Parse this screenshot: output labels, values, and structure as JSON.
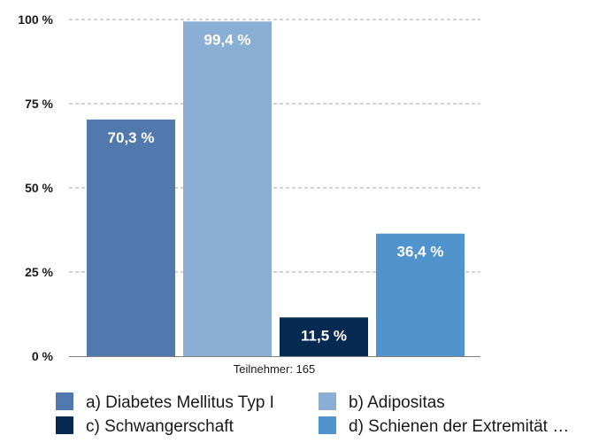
{
  "chart_data": {
    "type": "bar",
    "categories": [
      "a) Diabetes Mellitus Typ I",
      "b) Adipositas",
      "c) Schwangerschaft",
      "d) Schienen der Extremität …"
    ],
    "values": [
      70.3,
      99.4,
      11.5,
      36.4
    ],
    "value_labels": [
      "70,3 %",
      "99,4 %",
      "11,5 %",
      "36,4 %"
    ],
    "colors": [
      "#5279ad",
      "#8aaed4",
      "#062a52",
      "#5193cc"
    ],
    "ylim": [
      0,
      100
    ],
    "yticks": [
      0,
      25,
      50,
      75,
      100
    ],
    "ytick_labels": [
      "0 %",
      "25 %",
      "50 %",
      "75 %",
      "100 %"
    ],
    "xlabel": "Teilnehmer: 165",
    "grid": "dashed horizontal",
    "legend_position": "bottom",
    "legend": [
      "a) Diabetes Mellitus Typ I",
      "b) Adipositas",
      "c) Schwangerschaft",
      "d) Schienen der Extremität …"
    ]
  }
}
